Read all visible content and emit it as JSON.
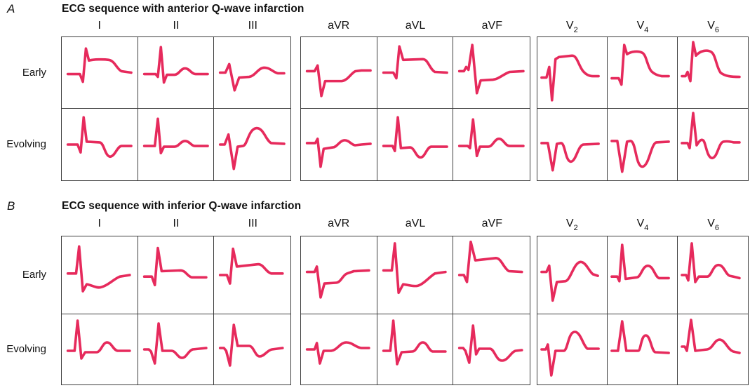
{
  "colors": {
    "waveform": "#E62A5C",
    "grid_border": "#3e3e3e",
    "text": "#111111"
  },
  "panels": [
    {
      "label": "A",
      "title": "ECG sequence with anterior Q-wave infarction",
      "row_labels": [
        "Early",
        "Evolving"
      ],
      "leads": [
        {
          "base": "I",
          "sub": ""
        },
        {
          "base": "II",
          "sub": ""
        },
        {
          "base": "III",
          "sub": ""
        },
        {
          "base": "aVR",
          "sub": ""
        },
        {
          "base": "aVL",
          "sub": ""
        },
        {
          "base": "aVF",
          "sub": ""
        },
        {
          "base": "V",
          "sub": "2"
        },
        {
          "base": "V",
          "sub": "4"
        },
        {
          "base": "V",
          "sub": "6"
        }
      ],
      "waveforms": {
        "early": [
          "M8,52 L24,52 L28,63 L32,16 L36,33 C42,31 56,31 62,32 C70,33 73,45 79,48 L92,50",
          "M8,52 L23,52 L26,56 L30,14 L34,64 L38,53 L48,53 C54,53 56,44 62,44 C68,44 70,52 76,52 L92,52",
          "M8,50 L15,50 L20,38 L27,75 L33,57 L46,56 C54,55 58,43 66,43 C74,43 78,50 84,51 L92,51",
          "M8,48 L18,48 L22,40 L27,83 L32,62 L54,62 C62,61 66,51 72,48 L80,47 L92,47",
          "M8,50 L21,50 L25,58 L29,13 L34,32 L60,31 C67,31 69,45 76,49 L92,50",
          "M8,48 L14,48 L17,42 L20,46 L25,11 L31,79 L36,61 L52,60 C60,59 66,52 74,49 L92,48",
          "M6,57 L13,57 L17,42 L21,89 L26,31 L31,28 L50,26 C57,26 59,39 65,47 C69,52 74,55 80,55 L88,55",
          "M6,58 L16,58 L20,67 L24,11 L28,24 C34,20 44,19 50,22 C56,25 57,41 63,48 C67,52 72,54 78,55 L88,55",
          "M6,55 L11,55 L14,49 L18,62 L22,7 L26,26 C32,19 42,17 48,21 C54,25 55,42 61,50 C67,55 76,56 88,56"
        ],
        "evolving": [
          "M8,50 L21,50 L25,61 L29,12 L33,46 L50,47 C56,47 57,66 64,67 C71,66 73,53 79,52 L92,52",
          "M8,52 L22,52 L26,14 L30,62 L34,53 L48,53 C54,53 56,45 62,45 C68,45 70,52 75,52 L92,52",
          "M8,50 L14,50 L19,36 L26,84 L31,53 L38,52 C44,51 45,28 56,27 C65,27 68,44 75,48 L92,49",
          "M8,48 L19,48 L22,42 L26,81 L30,56 L42,54 C48,54 51,44 58,44 C64,44 67,51 72,51 L80,50 L92,49",
          "M8,52 L20,52 L23,59 L27,12 L31,55 L43,54 C49,54 51,68 57,68 C63,68 65,54 71,53 L92,53",
          "M8,52 L19,52 L22,55 L26,15 L31,66 L35,53 L46,53 C52,53 54,42 60,42 C66,42 68,52 74,52 L92,52",
          "M6,48 L15,48 L22,86 L28,49 L34,48 C40,48 40,73 48,74 C56,73 58,52 66,50 L88,49",
          "M6,45 L14,45 L21,88 L28,46 L33,45 C41,45 40,80 50,81 C60,80 62,50 70,47 L88,46",
          "M6,48 L14,48 L17,55 L22,6 L27,51 C30,46 33,42 36,44 C40,46 41,68 49,69 C57,68 58,48 65,46 C71,45 75,46 80,47 L88,47"
        ]
      }
    },
    {
      "label": "B",
      "title": "ECG sequence with inferior Q-wave infarction",
      "row_labels": [
        "Early",
        "Evolving"
      ],
      "leads": [
        {
          "base": "I",
          "sub": ""
        },
        {
          "base": "II",
          "sub": ""
        },
        {
          "base": "III",
          "sub": ""
        },
        {
          "base": "aVR",
          "sub": ""
        },
        {
          "base": "aVL",
          "sub": ""
        },
        {
          "base": "aVF",
          "sub": ""
        },
        {
          "base": "V",
          "sub": "2"
        },
        {
          "base": "V",
          "sub": "4"
        },
        {
          "base": "V",
          "sub": "6"
        }
      ],
      "waveforms": {
        "early": [
          "M8,48 L19,48 L23,13 L28,71 L33,62 C40,63 45,67 51,66 C61,64 69,55 77,52 L90,50",
          "M8,52 L18,52 L22,63 L26,15 L31,45 L56,44 C63,44 65,52 71,53 L90,53",
          "M8,50 L17,50 L21,61 L25,16 L30,39 L58,36 C65,36 68,46 75,48 L90,48",
          "M8,46 L18,46 L21,39 L26,79 L31,61 L46,60 C53,60 55,50 61,48 L70,45 L90,44",
          "M8,44 L19,44 L23,9 L28,73 L34,62 C42,63 47,65 53,64 C61,62 68,53 76,48 L90,46",
          "M8,50 L14,50 L18,59 L23,7 L29,31 L56,28 C63,28 66,41 73,45 L90,46",
          "M6,46 L13,46 L17,38 L22,83 L28,59 L40,58 C48,57 52,34 62,33 C70,33 74,45 80,49 L87,51",
          "M6,52 L14,52 L17,58 L21,11 L26,55 L42,53 C48,53 50,38 58,38 C66,38 68,52 74,54 L88,54",
          "M6,50 L12,50 L15,57 L20,9 L25,59 L30,52 L42,52 C48,52 50,37 58,37 C66,37 68,49 74,51 C80,52 84,53 88,54"
        ],
        "evolving": [
          "M8,52 L17,52 L21,9 L26,63 L31,54 L46,54 C52,54 54,40 60,40 C66,40 68,51 74,52 L90,52",
          "M8,50 L14,50 L17,53 L22,70 L27,13 L32,52 L44,52 C50,52 52,62 58,62 C64,62 66,52 72,50 L90,48",
          "M8,48 L13,48 L16,52 L21,73 L26,15 L31,45 L46,45 C52,45 54,60 60,60 C66,60 70,51 76,50 L90,48",
          "M8,50 L18,50 L21,41 L25,70 L30,52 L40,52 C48,51 52,40 60,40 C68,40 72,47 80,48 L90,48",
          "M8,52 L17,52 L21,9 L26,71 L32,54 L46,53 C52,53 54,40 60,40 C66,40 68,52 73,53 L90,53",
          "M8,48 L13,48 L16,52 L21,69 L26,16 L30,57 L34,49 L48,49 C54,49 56,66 64,66 C72,66 76,53 82,52 L90,51",
          "M6,50 L12,50 L15,43 L20,87 L26,52 L38,52 C44,51 44,25 54,25 C62,25 66,45 72,49 L88,49",
          "M6,52 L15,52 L21,10 L27,52 L44,52 C48,52 48,30 55,30 C62,30 63,53 69,54 L88,55",
          "M6,46 L10,46 L13,52 L19,8 L25,52 L42,50 C50,49 52,36 60,36 C68,37 71,50 79,53 L88,55"
        ]
      }
    }
  ]
}
